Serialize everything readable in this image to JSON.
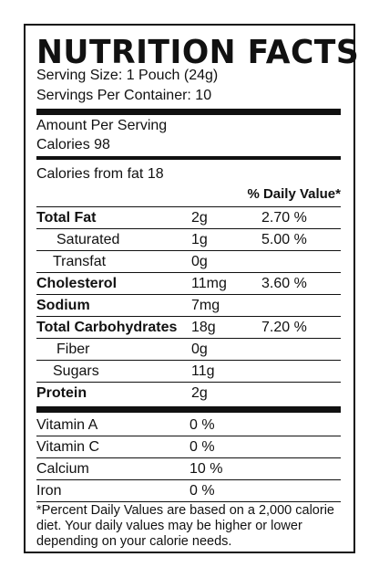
{
  "title": "NUTRITION FACTS",
  "serving_size": "Serving Size: 1 Pouch (24g)",
  "servings_per_container": "Servings Per Container: 10",
  "amount_per_serving": "Amount Per Serving",
  "calories": "Calories  98",
  "calories_from_fat": "Calories from fat 18",
  "daily_value_header": "% Daily Value*",
  "nutrients": [
    {
      "name": "Total Fat",
      "amount": "2g",
      "dv": "2.70 %"
    },
    {
      "name": "Saturated",
      "amount": "1g",
      "dv": "5.00 %"
    },
    {
      "name": "Transfat",
      "amount": "0g",
      "dv": ""
    },
    {
      "name": "Cholesterol",
      "amount": "11mg",
      "dv": "3.60 %"
    },
    {
      "name": "Sodium",
      "amount": "7mg",
      "dv": ""
    },
    {
      "name": "Total Carbohydrates",
      "amount": "18g",
      "dv": "7.20 %"
    },
    {
      "name": "Fiber",
      "amount": "0g",
      "dv": ""
    },
    {
      "name": "Sugars",
      "amount": "11g",
      "dv": ""
    },
    {
      "name": "Protein",
      "amount": "2g",
      "dv": ""
    }
  ],
  "vitamins": [
    {
      "name": "Vitamin A",
      "amount": "0 %"
    },
    {
      "name": "Vitamin C",
      "amount": "0 %"
    },
    {
      "name": "Calcium",
      "amount": "10 %"
    },
    {
      "name": "Iron",
      "amount": " 0 %"
    }
  ],
  "footnote": "*Percent Daily Values are based on a 2,000 calorie diet. Your daily values may be higher or lower depending on your calorie needs."
}
